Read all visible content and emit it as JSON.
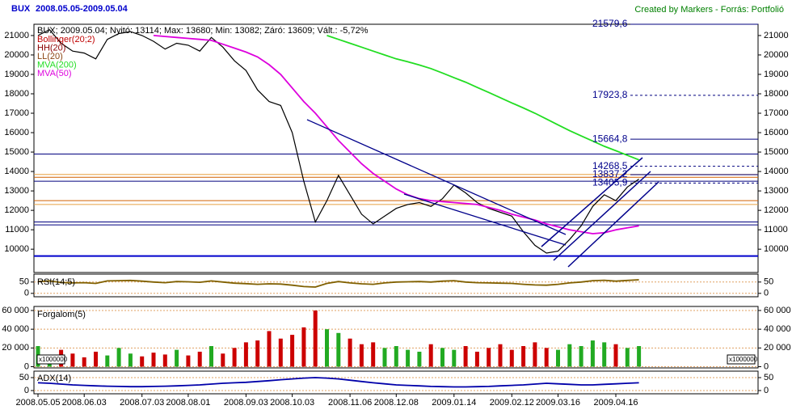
{
  "header": {
    "title": "BUX",
    "range": "2008.05.05-2009.05.04",
    "credit": "Created by Markers - Forrás: Portfolió"
  },
  "chart_data": [
    {
      "type": "line",
      "info": "BUX; 2009.05.04; Nyitó: 13114; Max: 13680; Min: 13082; Záró: 13609; Vált.: -5,72%",
      "categories": [
        "2008.05.05",
        null,
        null,
        null,
        "2008.06.03",
        null,
        null,
        null,
        null,
        "2008.07.03",
        null,
        null,
        null,
        "2008.08.01",
        null,
        null,
        null,
        null,
        "2008.09.03",
        null,
        null,
        null,
        "2008.10.03",
        null,
        null,
        null,
        null,
        "2008.11.06",
        null,
        null,
        null,
        "2008.12.08",
        null,
        null,
        null,
        null,
        "2009.01.14",
        null,
        null,
        null,
        null,
        "2009.02.12",
        null,
        null,
        null,
        "2009.03.16",
        null,
        null,
        null,
        null,
        "2009.04.16",
        null,
        null
      ],
      "ylim": [
        8800,
        21580
      ],
      "yticks": [
        10000,
        11000,
        12000,
        13000,
        14000,
        15000,
        16000,
        17000,
        18000,
        19000,
        20000,
        21000
      ],
      "indicators": [
        {
          "name": "Bollinger(20;2)",
          "color": "#c00000"
        },
        {
          "name": "HH(20)",
          "color": "#8b0000"
        },
        {
          "name": "LL(20)",
          "color": "#8b4513"
        }
      ],
      "series": [
        {
          "name": "BUX",
          "color": "#000000",
          "values": [
            21000,
            21300,
            20600,
            20200,
            20100,
            19800,
            20800,
            21100,
            21200,
            21000,
            20700,
            20300,
            20600,
            20500,
            20200,
            20900,
            20400,
            19700,
            19200,
            18200,
            17600,
            17400,
            16000,
            13500,
            11400,
            12500,
            13800,
            12800,
            11800,
            11300,
            11700,
            12100,
            12300,
            12400,
            12200,
            12600,
            13300,
            12900,
            12400,
            12100,
            11900,
            11700,
            10900,
            10200,
            9800,
            9900,
            10500,
            11200,
            12200,
            12800,
            12500,
            13200,
            13609
          ]
        },
        {
          "name": "MVA(200)",
          "color": "#22dd22",
          "values": [
            null,
            null,
            null,
            null,
            null,
            null,
            null,
            null,
            null,
            null,
            null,
            null,
            null,
            null,
            null,
            null,
            null,
            null,
            null,
            null,
            null,
            null,
            null,
            null,
            null,
            21000,
            20800,
            20600,
            20400,
            20200,
            20000,
            19800,
            19650,
            19480,
            19300,
            19070,
            18830,
            18600,
            18330,
            18070,
            17800,
            17530,
            17270,
            17000,
            16700,
            16400,
            16100,
            15830,
            15570,
            15300,
            15070,
            14830,
            14600
          ]
        },
        {
          "name": "MVA(50)",
          "color": "#dd00dd",
          "values": [
            null,
            null,
            null,
            null,
            null,
            null,
            null,
            null,
            null,
            null,
            21000,
            20950,
            20900,
            20850,
            20800,
            20750,
            20550,
            20350,
            20150,
            19900,
            19500,
            19000,
            18300,
            17600,
            17000,
            16300,
            15600,
            15000,
            14400,
            13900,
            13500,
            13100,
            12800,
            12600,
            12500,
            12450,
            12400,
            12350,
            12300,
            12150,
            12000,
            11800,
            11650,
            11500,
            11300,
            11150,
            11000,
            10900,
            10800,
            10850,
            11000,
            11100,
            11200
          ]
        }
      ],
      "hlines": [
        {
          "value": 14900,
          "color": "#00007f"
        },
        {
          "value": 13850,
          "color": "#e8a040"
        },
        {
          "value": 13700,
          "color": "#d06000"
        },
        {
          "value": 13500,
          "color": "#00007f"
        },
        {
          "value": 12500,
          "color": "#d06000"
        },
        {
          "value": 12300,
          "color": "#e8a040"
        },
        {
          "value": 11400,
          "color": "#00007f"
        },
        {
          "value": 11250,
          "color": "#00007f"
        },
        {
          "value": 9650,
          "color": "#0000cc"
        }
      ],
      "levels": [
        {
          "value": 21579.6,
          "label": "21579,6"
        },
        {
          "value": 17923.8,
          "label": "17923,8"
        },
        {
          "value": 15664.8,
          "label": "15664,8"
        },
        {
          "value": 14268.5,
          "label": "14268,5"
        },
        {
          "value": 13837.2,
          "label": "13837,2"
        },
        {
          "value": 13405.9,
          "label": "13405,9"
        }
      ]
    },
    {
      "type": "line",
      "title": "RSI(14;5)",
      "ylim": [
        -15,
        85
      ],
      "yticks": [
        0,
        50
      ],
      "series": [
        {
          "name": "RSI",
          "color": "#806000",
          "values": [
            52,
            55,
            48,
            46,
            47,
            44,
            55,
            56,
            57,
            54,
            50,
            47,
            52,
            51,
            49,
            55,
            50,
            45,
            43,
            40,
            42,
            41,
            36,
            30,
            28,
            44,
            52,
            46,
            42,
            40,
            46,
            50,
            51,
            52,
            50,
            54,
            56,
            50,
            47,
            46,
            45,
            44,
            40,
            37,
            36,
            40,
            46,
            50,
            56,
            58,
            54,
            57,
            60
          ]
        }
      ]
    },
    {
      "type": "bar",
      "title": "Forgalom(5)",
      "unit": "x1000000",
      "ylim": [
        -1300,
        64300
      ],
      "yticks": [
        0,
        {
          "value": 20000,
          "label": "20 000"
        },
        {
          "value": 40000,
          "label": "40 000"
        },
        {
          "value": 60000,
          "label": "60 000"
        }
      ],
      "colors": [
        "#22aa22",
        "#cc0000"
      ],
      "values": [
        22000,
        12000,
        18000,
        14000,
        10000,
        16000,
        12000,
        20000,
        14000,
        11000,
        15000,
        13000,
        18000,
        12000,
        16000,
        22000,
        14000,
        20000,
        26000,
        28000,
        38000,
        30000,
        34000,
        42000,
        60000,
        40000,
        36000,
        30000,
        24000,
        26000,
        20000,
        22000,
        18000,
        16000,
        24000,
        20000,
        18000,
        22000,
        16000,
        20000,
        24000,
        18000,
        22000,
        26000,
        20000,
        18000,
        24000,
        22000,
        28000,
        26000,
        24000,
        20000,
        22000
      ]
    },
    {
      "type": "line",
      "title": "ADX(14)",
      "ylim": [
        -12.5,
        75
      ],
      "yticks": [
        0,
        50
      ],
      "series": [
        {
          "name": "ADX(14)",
          "color": "#0000aa",
          "values": [
            30,
            28,
            25,
            22,
            20,
            18,
            17,
            16,
            15,
            15,
            16,
            17,
            18,
            20,
            22,
            25,
            28,
            30,
            32,
            35,
            38,
            42,
            45,
            48,
            50,
            48,
            45,
            40,
            35,
            30,
            26,
            22,
            20,
            18,
            16,
            15,
            14,
            14,
            15,
            16,
            18,
            20,
            22,
            25,
            28,
            26,
            24,
            22,
            22,
            24,
            26,
            28,
            30
          ]
        }
      ]
    }
  ]
}
